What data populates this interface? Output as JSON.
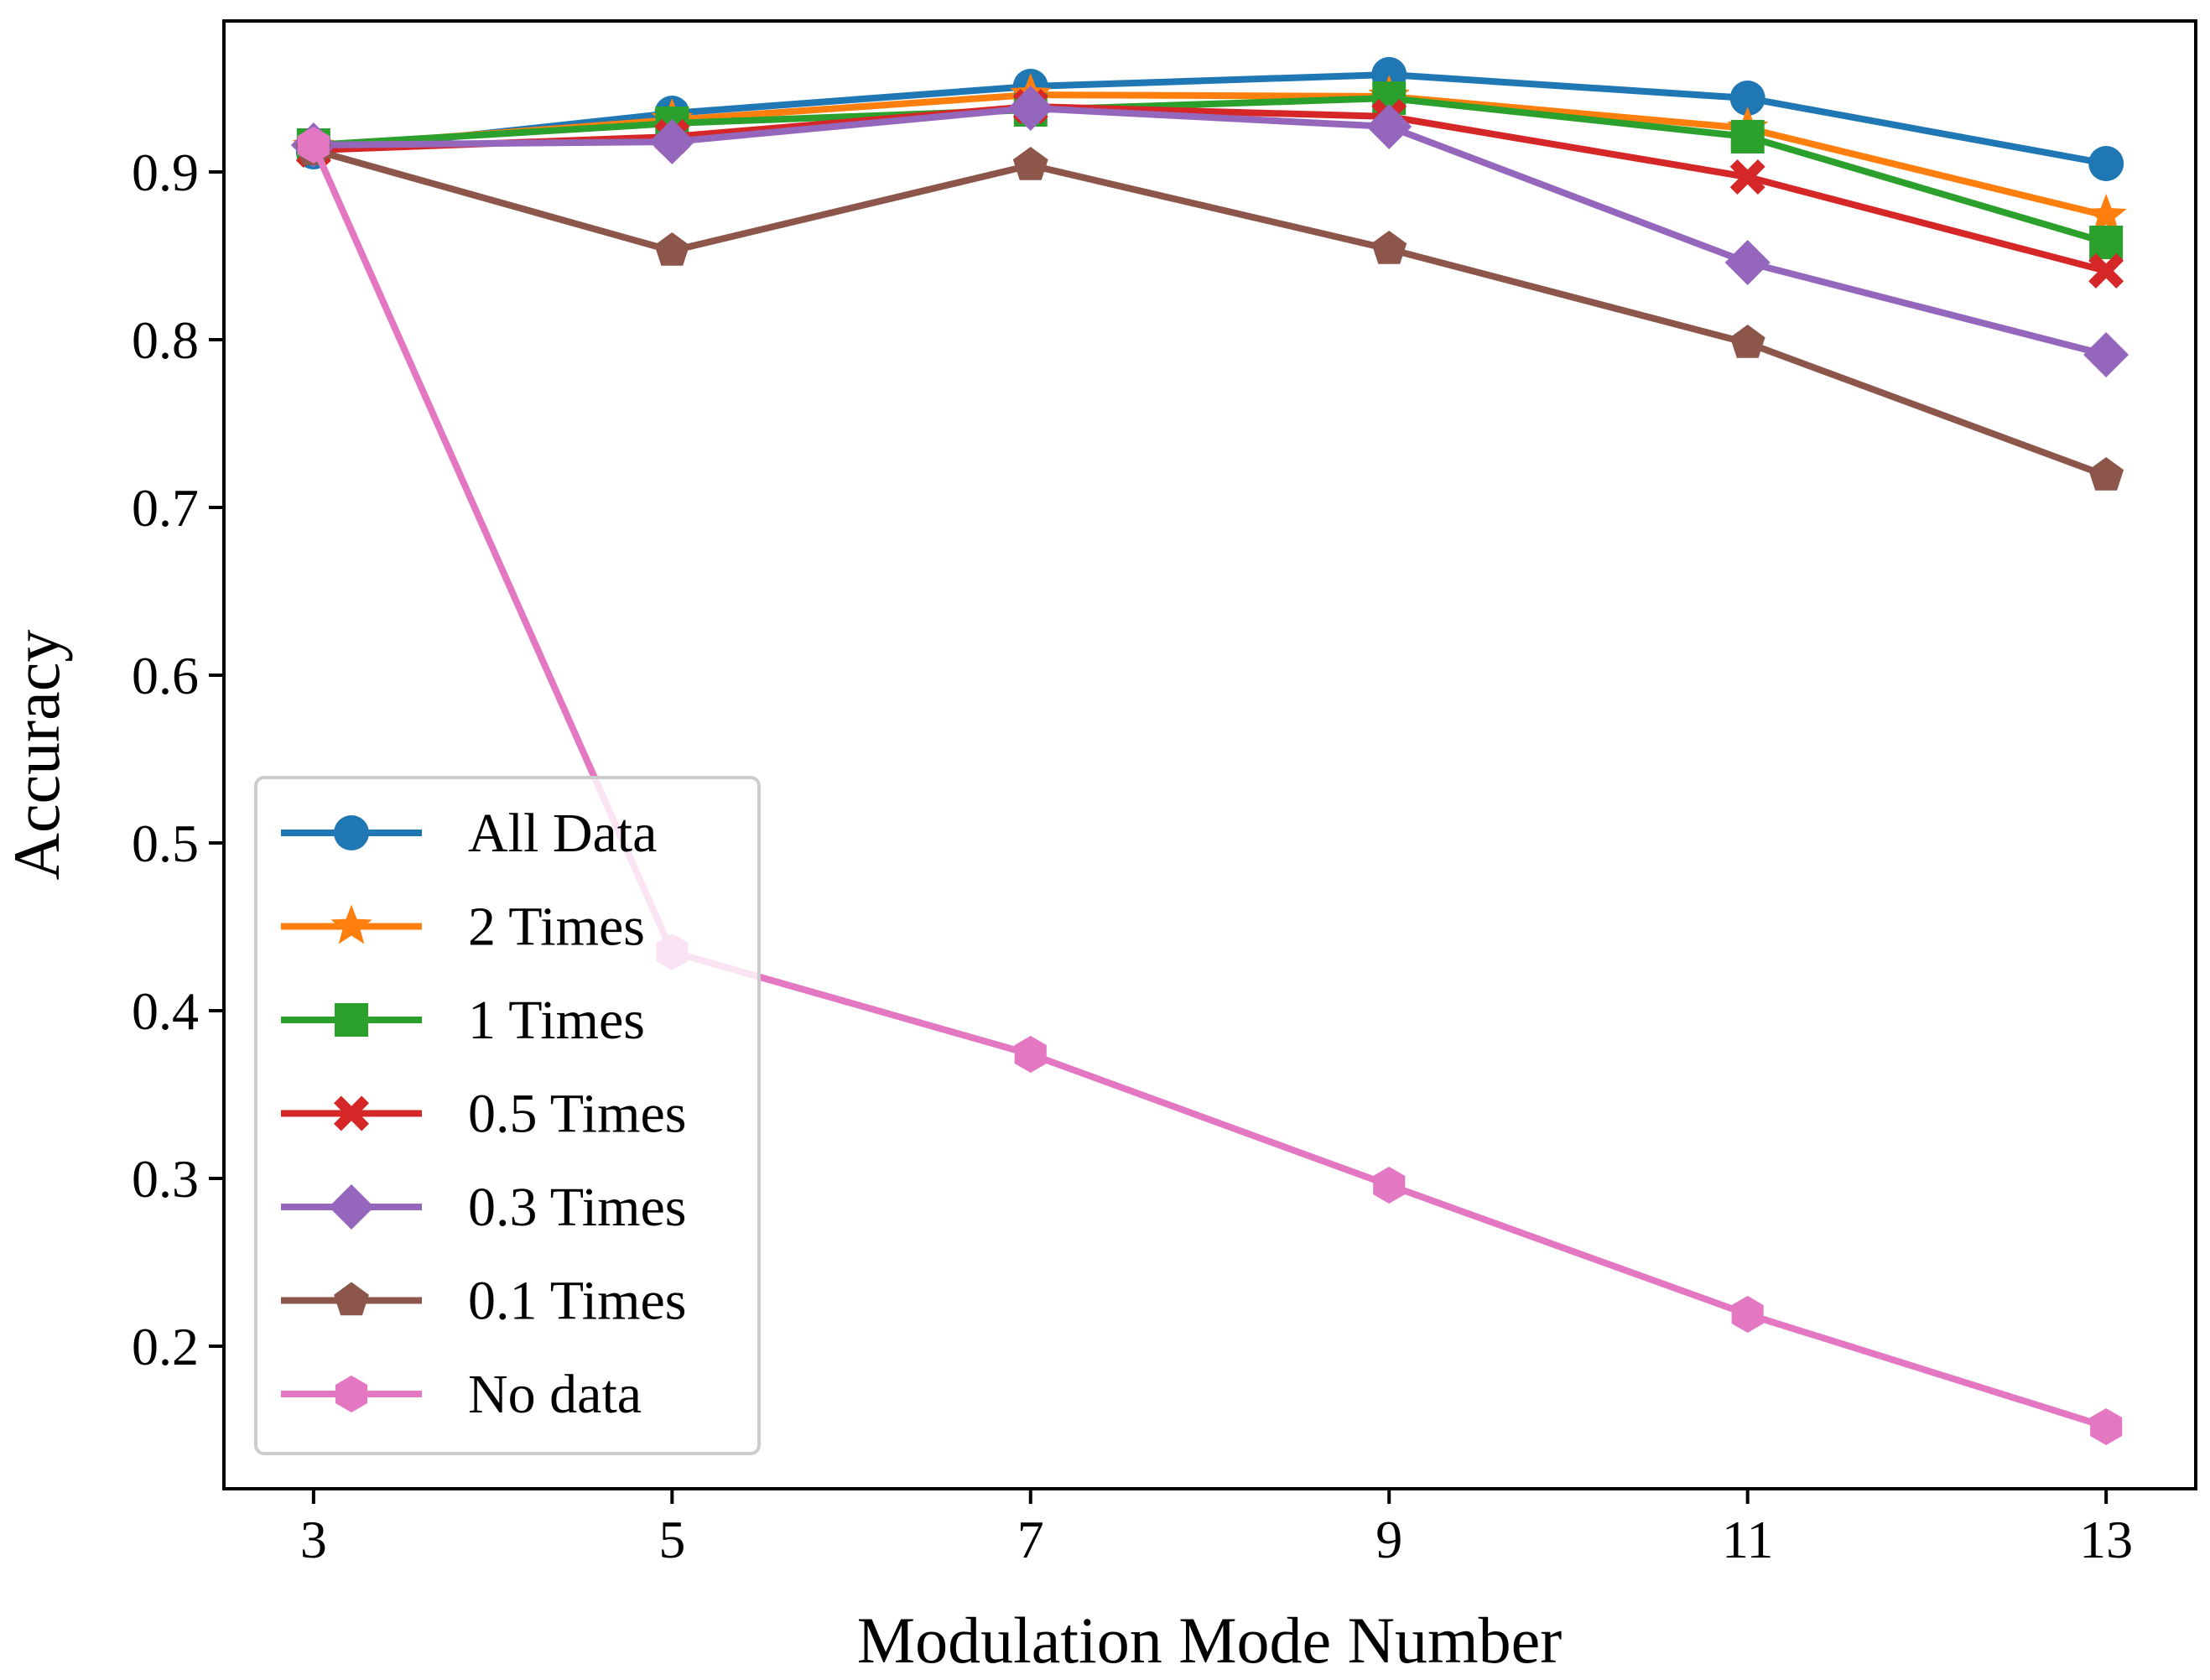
{
  "chart_data": {
    "type": "line",
    "title": "",
    "xlabel": "Modulation Mode Number",
    "ylabel": "Accuracy",
    "x": [
      3,
      5,
      7,
      9,
      11,
      13
    ],
    "xticks": [
      "3",
      "5",
      "7",
      "9",
      "11",
      "13"
    ],
    "xlim": [
      2.5,
      13.5
    ],
    "ylim": [
      0.115,
      0.99
    ],
    "yticks": [
      "0.2",
      "0.3",
      "0.4",
      "0.5",
      "0.6",
      "0.7",
      "0.8",
      "0.9"
    ],
    "legend_position": "lower-left",
    "grid": false,
    "series": [
      {
        "name": "All Data",
        "color": "#1f77b4",
        "marker": "circle",
        "values": [
          0.912,
          0.935,
          0.951,
          0.958,
          0.944,
          0.905
        ]
      },
      {
        "name": "2 Times",
        "color": "#ff7f0e",
        "marker": "star",
        "values": [
          0.915,
          0.931,
          0.946,
          0.945,
          0.926,
          0.874
        ]
      },
      {
        "name": "1 Times",
        "color": "#2ca02c",
        "marker": "square",
        "values": [
          0.916,
          0.929,
          0.937,
          0.944,
          0.921,
          0.858
        ]
      },
      {
        "name": "0.5 Times",
        "color": "#d62728",
        "marker": "x-filled",
        "values": [
          0.913,
          0.921,
          0.939,
          0.933,
          0.897,
          0.841
        ]
      },
      {
        "name": "0.3 Times",
        "color": "#9467bd",
        "marker": "diamond",
        "values": [
          0.916,
          0.918,
          0.938,
          0.927,
          0.846,
          0.791
        ]
      },
      {
        "name": "0.1 Times",
        "color": "#8c564b",
        "marker": "pentagon",
        "values": [
          0.913,
          0.853,
          0.904,
          0.854,
          0.798,
          0.719
        ]
      },
      {
        "name": "No data",
        "color": "#e377c2",
        "marker": "hexagon",
        "values": [
          0.916,
          0.435,
          0.374,
          0.296,
          0.219,
          0.152
        ]
      }
    ]
  }
}
